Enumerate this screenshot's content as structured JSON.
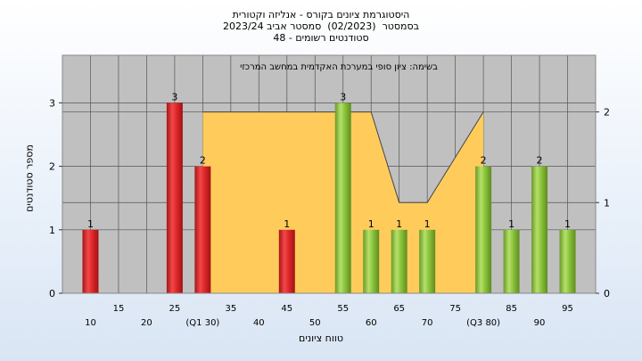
{
  "page": {
    "title_lines": [
      "היסטוגרמת ציונים בקורס - אנליזה וקטורית",
      "בסמסטר  (02/2023)  סמסטר אביב 2023/24",
      "סטודנטים רשומים - 48"
    ]
  },
  "chart_data": {
    "type": "bar",
    "title": "היסטוגרמת ציונים בקורס - אנליזה וקטורית",
    "annotation": "בשימה: ציון סופי במערכת האקדמית במחשב המרכזי",
    "xlabel": "טווח ציונים",
    "ylabel": "מספר סטודנטים",
    "xlim": [
      5,
      100
    ],
    "ylim": [
      0,
      3.75
    ],
    "y2lim": [
      0,
      2.625
    ],
    "yticks": [
      0,
      1,
      2,
      3
    ],
    "y2ticks": [
      0,
      1,
      2
    ],
    "xticks_upper": [
      15,
      25,
      35,
      45,
      55,
      65,
      75,
      85,
      95
    ],
    "xticks_lower": [
      "10",
      "20",
      "(Q1 30)",
      "40",
      "50",
      "60",
      "70",
      "(Q3 80)",
      "90"
    ],
    "xticks_lower_pos": [
      10,
      20,
      30,
      40,
      50,
      60,
      70,
      80,
      90
    ],
    "bars": [
      {
        "x": 10,
        "value": 1,
        "color": "red"
      },
      {
        "x": 25,
        "value": 3,
        "color": "red"
      },
      {
        "x": 30,
        "value": 2,
        "color": "red"
      },
      {
        "x": 45,
        "value": 1,
        "color": "red"
      },
      {
        "x": 55,
        "value": 3,
        "color": "green"
      },
      {
        "x": 60,
        "value": 1,
        "color": "green"
      },
      {
        "x": 65,
        "value": 1,
        "color": "green"
      },
      {
        "x": 70,
        "value": 1,
        "color": "green"
      },
      {
        "x": 80,
        "value": 2,
        "color": "green"
      },
      {
        "x": 85,
        "value": 1,
        "color": "green"
      },
      {
        "x": 90,
        "value": 2,
        "color": "green"
      },
      {
        "x": 95,
        "value": 1,
        "color": "green"
      }
    ],
    "area": {
      "x": [
        30,
        60,
        65,
        70,
        80
      ],
      "y2": [
        2,
        2,
        1,
        1,
        2
      ]
    },
    "colors": {
      "plot_bg": "#c0c0c0",
      "area_fill": "#ffcc5c",
      "red_bar": "#e0282a",
      "green_bar": "#8cc43c"
    },
    "grid": true
  }
}
